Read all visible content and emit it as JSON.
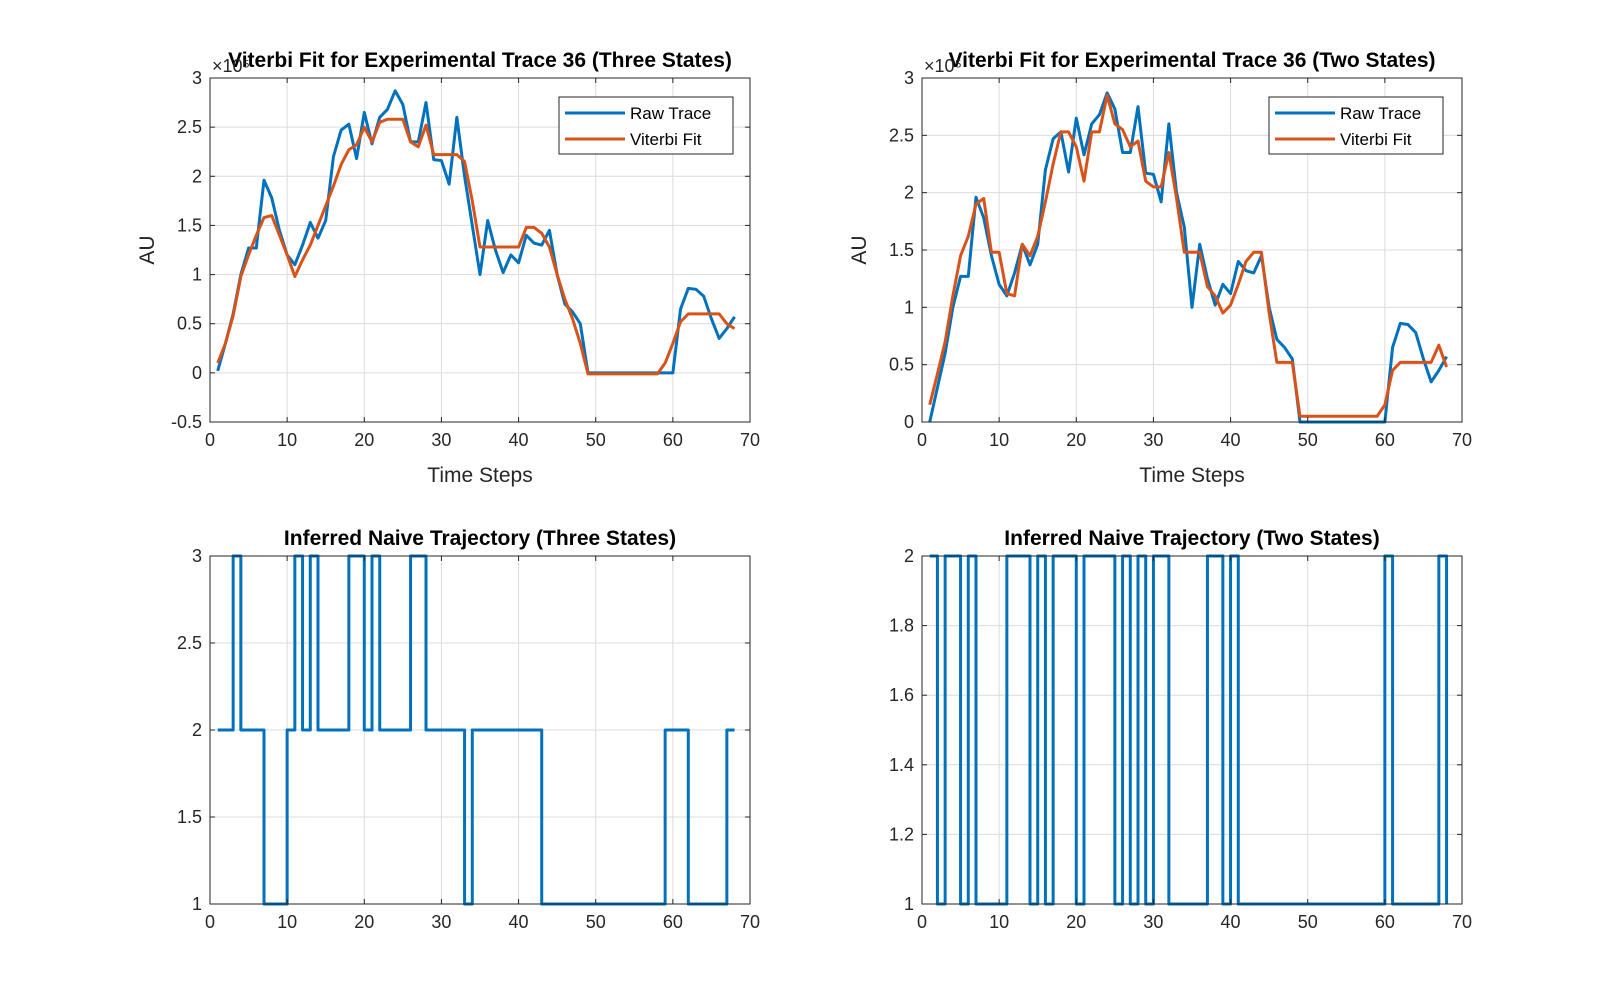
{
  "chart_data": [
    {
      "type": "line",
      "title": "Viterbi Fit for Experimental Trace 36 (Three States)",
      "xlabel": "Time Steps",
      "ylabel": "AU",
      "exponent_label": "×10⁵",
      "xlim": [
        0,
        70
      ],
      "ylim": [
        -0.5,
        3
      ],
      "xticks": [
        0,
        10,
        20,
        30,
        40,
        50,
        60,
        70
      ],
      "yticks": [
        -0.5,
        0,
        0.5,
        1,
        1.5,
        2,
        2.5,
        3
      ],
      "grid": true,
      "legend": "top-right",
      "series": [
        {
          "name": "Raw Trace",
          "color": "#0072BD",
          "x": [
            1,
            2,
            3,
            4,
            5,
            6,
            7,
            8,
            9,
            10,
            11,
            12,
            13,
            14,
            15,
            16,
            17,
            18,
            19,
            20,
            21,
            22,
            23,
            24,
            25,
            26,
            27,
            28,
            29,
            30,
            31,
            32,
            33,
            34,
            35,
            36,
            37,
            38,
            39,
            40,
            41,
            42,
            43,
            44,
            45,
            46,
            47,
            48,
            49,
            50,
            51,
            52,
            53,
            54,
            55,
            56,
            57,
            58,
            59,
            60,
            61,
            62,
            63,
            64,
            65,
            66,
            67,
            68
          ],
          "y": [
            0.02,
            0.3,
            0.6,
            1.0,
            1.27,
            1.27,
            1.96,
            1.78,
            1.45,
            1.2,
            1.1,
            1.3,
            1.53,
            1.37,
            1.55,
            2.2,
            2.47,
            2.53,
            2.18,
            2.65,
            2.33,
            2.6,
            2.68,
            2.87,
            2.73,
            2.35,
            2.35,
            2.75,
            2.17,
            2.16,
            1.92,
            2.6,
            2.0,
            1.5,
            1.0,
            1.55,
            1.25,
            1.02,
            1.2,
            1.12,
            1.4,
            1.32,
            1.3,
            1.45,
            1.0,
            0.7,
            0.62,
            0.5,
            0.0,
            0.0,
            0.0,
            0.0,
            0.0,
            0.0,
            0.0,
            0.0,
            0.0,
            0.0,
            0.0,
            0.0,
            0.65,
            0.86,
            0.85,
            0.78,
            0.55,
            0.35,
            0.45,
            0.57
          ]
        },
        {
          "name": "Viterbi Fit",
          "color": "#D95319",
          "x": [
            1,
            2,
            3,
            4,
            5,
            6,
            7,
            8,
            9,
            10,
            11,
            12,
            13,
            14,
            15,
            16,
            17,
            18,
            19,
            20,
            21,
            22,
            23,
            24,
            25,
            26,
            27,
            28,
            29,
            30,
            31,
            32,
            33,
            34,
            35,
            36,
            37,
            38,
            39,
            40,
            41,
            42,
            43,
            44,
            45,
            46,
            47,
            48,
            49,
            50,
            51,
            52,
            53,
            54,
            55,
            56,
            57,
            58,
            59,
            60,
            61,
            62,
            63,
            64,
            65,
            66,
            67,
            68
          ],
          "y": [
            0.1,
            0.3,
            0.58,
            0.98,
            1.2,
            1.4,
            1.58,
            1.6,
            1.4,
            1.2,
            0.98,
            1.15,
            1.3,
            1.5,
            1.7,
            1.9,
            2.12,
            2.27,
            2.32,
            2.5,
            2.35,
            2.55,
            2.58,
            2.58,
            2.58,
            2.35,
            2.3,
            2.52,
            2.22,
            2.22,
            2.22,
            2.22,
            2.15,
            1.75,
            1.28,
            1.28,
            1.28,
            1.28,
            1.28,
            1.28,
            1.48,
            1.48,
            1.42,
            1.28,
            1.0,
            0.75,
            0.55,
            0.3,
            -0.01,
            -0.01,
            -0.01,
            -0.01,
            -0.01,
            -0.01,
            -0.01,
            -0.01,
            -0.01,
            -0.01,
            0.1,
            0.3,
            0.52,
            0.6,
            0.6,
            0.6,
            0.6,
            0.6,
            0.5,
            0.45
          ]
        }
      ]
    },
    {
      "type": "line",
      "title": "Viterbi Fit for Experimental Trace  36 (Two States)",
      "xlabel": "Time Steps",
      "ylabel": "AU",
      "exponent_label": "×10⁵",
      "xlim": [
        0,
        70
      ],
      "ylim": [
        0,
        3
      ],
      "xticks": [
        0,
        10,
        20,
        30,
        40,
        50,
        60,
        70
      ],
      "yticks": [
        0,
        0.5,
        1,
        1.5,
        2,
        2.5,
        3
      ],
      "grid": true,
      "legend": "top-right",
      "series": [
        {
          "name": "Raw Trace",
          "color": "#0072BD",
          "x": [
            1,
            2,
            3,
            4,
            5,
            6,
            7,
            8,
            9,
            10,
            11,
            12,
            13,
            14,
            15,
            16,
            17,
            18,
            19,
            20,
            21,
            22,
            23,
            24,
            25,
            26,
            27,
            28,
            29,
            30,
            31,
            32,
            33,
            34,
            35,
            36,
            37,
            38,
            39,
            40,
            41,
            42,
            43,
            44,
            45,
            46,
            47,
            48,
            49,
            50,
            51,
            52,
            53,
            54,
            55,
            56,
            57,
            58,
            59,
            60,
            61,
            62,
            63,
            64,
            65,
            66,
            67,
            68
          ],
          "y": [
            0.0,
            0.3,
            0.6,
            1.0,
            1.27,
            1.27,
            1.96,
            1.78,
            1.45,
            1.2,
            1.1,
            1.3,
            1.55,
            1.37,
            1.55,
            2.2,
            2.47,
            2.53,
            2.18,
            2.65,
            2.33,
            2.6,
            2.68,
            2.87,
            2.73,
            2.35,
            2.35,
            2.75,
            2.17,
            2.16,
            1.92,
            2.6,
            2.0,
            1.7,
            1.0,
            1.55,
            1.25,
            1.02,
            1.2,
            1.12,
            1.4,
            1.32,
            1.3,
            1.45,
            1.0,
            0.72,
            0.65,
            0.55,
            0.0,
            0.0,
            0.0,
            0.0,
            0.0,
            0.0,
            0.0,
            0.0,
            0.0,
            0.0,
            0.0,
            0.0,
            0.65,
            0.86,
            0.85,
            0.78,
            0.55,
            0.35,
            0.45,
            0.57
          ]
        },
        {
          "name": "Viterbi Fit",
          "color": "#D95319",
          "x": [
            1,
            2,
            3,
            4,
            5,
            6,
            7,
            8,
            9,
            10,
            11,
            12,
            13,
            14,
            15,
            16,
            17,
            18,
            19,
            20,
            21,
            22,
            23,
            24,
            25,
            26,
            27,
            28,
            29,
            30,
            31,
            32,
            33,
            34,
            35,
            36,
            37,
            38,
            39,
            40,
            41,
            42,
            43,
            44,
            45,
            46,
            47,
            48,
            49,
            50,
            51,
            52,
            53,
            54,
            55,
            56,
            57,
            58,
            59,
            60,
            61,
            62,
            63,
            64,
            65,
            66,
            67,
            68
          ],
          "y": [
            0.15,
            0.42,
            0.7,
            1.1,
            1.45,
            1.62,
            1.9,
            1.95,
            1.48,
            1.48,
            1.12,
            1.1,
            1.55,
            1.45,
            1.62,
            1.92,
            2.25,
            2.53,
            2.53,
            2.4,
            2.1,
            2.53,
            2.53,
            2.85,
            2.6,
            2.55,
            2.4,
            2.45,
            2.1,
            2.05,
            2.05,
            2.35,
            1.95,
            1.48,
            1.48,
            1.48,
            1.18,
            1.1,
            0.95,
            1.02,
            1.2,
            1.4,
            1.48,
            1.48,
            0.95,
            0.52,
            0.52,
            0.52,
            0.05,
            0.05,
            0.05,
            0.05,
            0.05,
            0.05,
            0.05,
            0.05,
            0.05,
            0.05,
            0.05,
            0.15,
            0.45,
            0.52,
            0.52,
            0.52,
            0.52,
            0.52,
            0.67,
            0.48
          ]
        }
      ]
    },
    {
      "type": "line",
      "step": true,
      "title": "Inferred Naive Trajectory (Three States)",
      "xlim": [
        0,
        70
      ],
      "ylim": [
        1,
        3
      ],
      "xticks": [
        0,
        10,
        20,
        30,
        40,
        50,
        60,
        70
      ],
      "yticks": [
        1,
        1.5,
        2,
        2.5,
        3
      ],
      "grid": true,
      "series": [
        {
          "color": "#0072BD",
          "x": [
            1,
            2,
            3,
            4,
            5,
            6,
            7,
            8,
            9,
            10,
            11,
            12,
            13,
            14,
            15,
            16,
            17,
            18,
            19,
            20,
            21,
            22,
            23,
            24,
            25,
            26,
            27,
            28,
            29,
            30,
            31,
            32,
            33,
            34,
            35,
            36,
            37,
            38,
            39,
            40,
            41,
            42,
            43,
            44,
            45,
            46,
            47,
            48,
            49,
            50,
            51,
            52,
            53,
            54,
            55,
            56,
            57,
            58,
            59,
            60,
            61,
            62,
            63,
            64,
            65,
            66,
            67,
            68
          ],
          "y": [
            2,
            2,
            3,
            2,
            2,
            2,
            1,
            1,
            1,
            2,
            3,
            2,
            3,
            2,
            2,
            2,
            2,
            3,
            3,
            2,
            3,
            2,
            2,
            2,
            2,
            3,
            3,
            2,
            2,
            2,
            2,
            2,
            1,
            2,
            2,
            2,
            2,
            2,
            2,
            2,
            2,
            2,
            1,
            1,
            1,
            1,
            1,
            1,
            1,
            1,
            1,
            1,
            1,
            1,
            1,
            1,
            1,
            1,
            2,
            2,
            2,
            1,
            1,
            1,
            1,
            1,
            2,
            2
          ]
        }
      ]
    },
    {
      "type": "line",
      "step": true,
      "title": "Inferred Naive Trajectory (Two States)",
      "xlim": [
        0,
        70
      ],
      "ylim": [
        1,
        2
      ],
      "xticks": [
        0,
        10,
        20,
        30,
        40,
        50,
        60,
        70
      ],
      "yticks": [
        1,
        1.2,
        1.4,
        1.6,
        1.8,
        2
      ],
      "grid": true,
      "series": [
        {
          "color": "#0072BD",
          "x": [
            1,
            2,
            3,
            4,
            5,
            6,
            7,
            8,
            9,
            10,
            11,
            12,
            13,
            14,
            15,
            16,
            17,
            18,
            19,
            20,
            21,
            22,
            23,
            24,
            25,
            26,
            27,
            28,
            29,
            30,
            31,
            32,
            33,
            34,
            35,
            36,
            37,
            38,
            39,
            40,
            41,
            42,
            43,
            44,
            45,
            46,
            47,
            48,
            49,
            50,
            51,
            52,
            53,
            54,
            55,
            56,
            57,
            58,
            59,
            60,
            61,
            62,
            63,
            64,
            65,
            66,
            67,
            68
          ],
          "y": [
            2,
            1,
            2,
            2,
            1,
            2,
            1,
            1,
            1,
            1,
            2,
            2,
            2,
            1,
            2,
            1,
            2,
            2,
            2,
            1,
            2,
            2,
            2,
            2,
            1,
            2,
            1,
            2,
            1,
            2,
            2,
            1,
            1,
            1,
            1,
            1,
            2,
            2,
            1,
            2,
            1,
            1,
            1,
            1,
            1,
            1,
            1,
            1,
            1,
            1,
            1,
            1,
            1,
            1,
            1,
            1,
            1,
            1,
            1,
            2,
            1,
            1,
            1,
            1,
            1,
            1,
            2,
            1
          ]
        }
      ]
    }
  ]
}
